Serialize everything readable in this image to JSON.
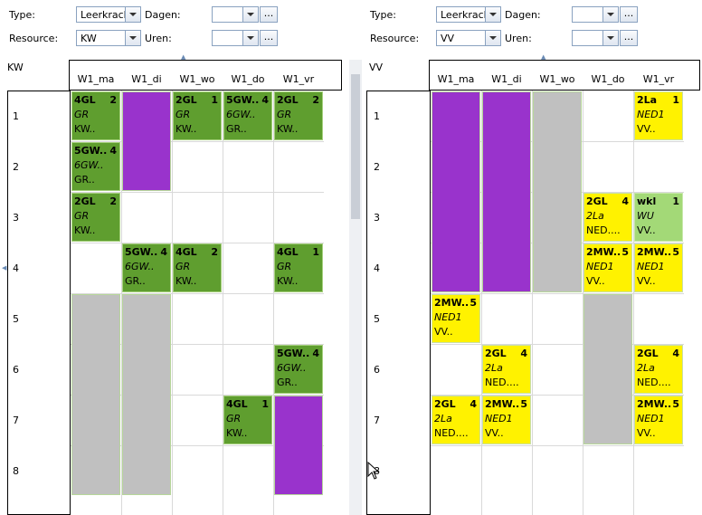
{
  "left": {
    "type_label": "Type:",
    "type_value": "Leerkracht",
    "resource_label": "Resource:",
    "resource_value": "KW",
    "dagen_label": "Dagen:",
    "uren_label": "Uren:",
    "dots": "...",
    "title": "KW",
    "days": [
      "W1_ma",
      "W1_di",
      "W1_wo",
      "W1_do",
      "W1_vr"
    ],
    "rows": [
      "1",
      "2",
      "3",
      "4",
      "5",
      "6",
      "7",
      "8"
    ],
    "lessons": [
      {
        "l1": "4GL",
        "n": "2",
        "l2": "GR",
        "l3": "KW.."
      },
      {
        "l1": "2GL",
        "n": "1",
        "l2": "GR",
        "l3": "KW.."
      },
      {
        "l1": "5GW..",
        "n": "4",
        "l2": "6GW..",
        "l3": "GR.."
      },
      {
        "l1": "2GL",
        "n": "2",
        "l2": "GR",
        "l3": "KW.."
      },
      {
        "l1": "5GW..",
        "n": "4",
        "l2": "6GW..",
        "l3": "GR.."
      },
      {
        "l1": "2GL",
        "n": "2",
        "l2": "GR",
        "l3": "KW.."
      },
      {
        "l1": "5GW..",
        "n": "4",
        "l2": "6GW..",
        "l3": "GR.."
      },
      {
        "l1": "4GL",
        "n": "2",
        "l2": "GR",
        "l3": "KW.."
      },
      {
        "l1": "4GL",
        "n": "1",
        "l2": "GR",
        "l3": "KW.."
      },
      {
        "l1": "5GW..",
        "n": "4",
        "l2": "6GW..",
        "l3": "GR.."
      },
      {
        "l1": "4GL",
        "n": "1",
        "l2": "GR",
        "l3": "KW.."
      }
    ]
  },
  "right": {
    "type_label": "Type:",
    "type_value": "Leerkracht",
    "resource_label": "Resource:",
    "resource_value": "VV",
    "dagen_label": "Dagen:",
    "uren_label": "Uren:",
    "dots": "...",
    "title": "VV",
    "days": [
      "W1_ma",
      "W1_di",
      "W1_wo",
      "W1_do",
      "W1_vr"
    ],
    "rows": [
      "1",
      "2",
      "3",
      "4",
      "5",
      "6",
      "7",
      "8"
    ],
    "lessons": [
      {
        "l1": "2La",
        "n": "1",
        "l2": "NED1",
        "l3": "VV.."
      },
      {
        "l1": "2GL",
        "n": "4",
        "l2": "2La",
        "l3": "NED...."
      },
      {
        "l1": "wkl",
        "n": "1",
        "l2": "WU",
        "l3": "VV.."
      },
      {
        "l1": "2MW..",
        "n": "5",
        "l2": "NED1",
        "l3": "VV.."
      },
      {
        "l1": "2MW..",
        "n": "5",
        "l2": "NED1",
        "l3": "VV.."
      },
      {
        "l1": "2MW..",
        "n": "5",
        "l2": "NED1",
        "l3": "VV.."
      },
      {
        "l1": "2GL",
        "n": "4",
        "l2": "2La",
        "l3": "NED...."
      },
      {
        "l1": "2GL",
        "n": "4",
        "l2": "2La",
        "l3": "NED...."
      },
      {
        "l1": "2GL",
        "n": "4",
        "l2": "2La",
        "l3": "NED...."
      },
      {
        "l1": "2MW..",
        "n": "5",
        "l2": "NED1",
        "l3": "VV.."
      },
      {
        "l1": "2MW..",
        "n": "5",
        "l2": "NED1",
        "l3": "VV.."
      }
    ]
  },
  "colors": {
    "green": "#5f9e2f",
    "lightgreen": "#a3d977",
    "yellow": "#fff200",
    "purple": "#9933cc",
    "gray": "#c0c0c0"
  }
}
